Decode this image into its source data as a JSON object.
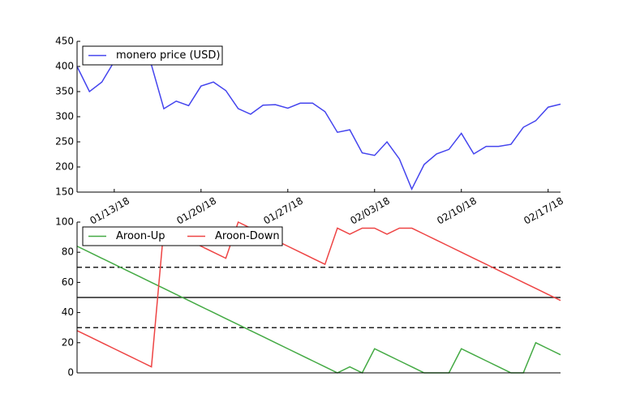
{
  "chart_data": [
    {
      "type": "line",
      "x": [
        "01/10/18",
        "01/11/18",
        "01/12/18",
        "01/13/18",
        "01/14/18",
        "01/15/18",
        "01/16/18",
        "01/17/18",
        "01/18/18",
        "01/19/18",
        "01/20/18",
        "01/21/18",
        "01/22/18",
        "01/23/18",
        "01/24/18",
        "01/25/18",
        "01/26/18",
        "01/27/18",
        "01/28/18",
        "01/29/18",
        "01/30/18",
        "01/31/18",
        "02/01/18",
        "02/02/18",
        "02/03/18",
        "02/04/18",
        "02/05/18",
        "02/06/18",
        "02/07/18",
        "02/08/18",
        "02/09/18",
        "02/10/18",
        "02/11/18",
        "02/12/18",
        "02/13/18",
        "02/14/18",
        "02/15/18",
        "02/16/18",
        "02/17/18",
        "02/18/18"
      ],
      "series": [
        {
          "name": "monero price (USD)",
          "color": "#4444ee",
          "values": [
            400,
            350,
            369,
            410,
            415,
            412,
            403,
            316,
            331,
            322,
            361,
            369,
            352,
            316,
            305,
            323,
            324,
            317,
            327,
            327,
            310,
            269,
            274,
            228,
            223,
            250,
            216,
            156,
            205,
            226,
            235,
            267,
            226,
            241,
            241,
            245,
            279,
            292,
            319,
            325
          ]
        }
      ],
      "xticks": [
        "01/13/18",
        "01/20/18",
        "01/27/18",
        "02/03/18",
        "02/10/18",
        "02/17/18"
      ],
      "ylim": [
        150,
        450
      ],
      "yticks": [
        150,
        200,
        250,
        300,
        350,
        400,
        450
      ],
      "legend": "upper left"
    },
    {
      "type": "line",
      "series": [
        {
          "name": "Aroon-Up",
          "color": "#44aa44",
          "values": [
            84,
            80,
            76,
            72,
            68,
            64,
            60,
            56,
            52,
            48,
            44,
            40,
            36,
            32,
            28,
            24,
            20,
            16,
            12,
            8,
            4,
            0,
            4,
            0,
            16,
            12,
            8,
            4,
            0,
            0,
            0,
            16,
            12,
            8,
            4,
            0,
            0,
            20,
            16,
            12
          ]
        },
        {
          "name": "Aroon-Down",
          "color": "#ee4444",
          "values": [
            28,
            24,
            20,
            16,
            12,
            8,
            4,
            96,
            92,
            88,
            84,
            80,
            76,
            100,
            96,
            92,
            88,
            84,
            80,
            76,
            72,
            96,
            92,
            96,
            96,
            92,
            96,
            96,
            92,
            88,
            84,
            80,
            76,
            72,
            68,
            64,
            60,
            56,
            52,
            48
          ]
        }
      ],
      "hlines": [
        {
          "value": 70,
          "style": "dashed"
        },
        {
          "value": 50,
          "style": "solid"
        },
        {
          "value": 30,
          "style": "dashed"
        }
      ],
      "ylim": [
        0,
        100
      ],
      "yticks": [
        0,
        20,
        40,
        60,
        80,
        100
      ],
      "legend": "upper left"
    }
  ]
}
